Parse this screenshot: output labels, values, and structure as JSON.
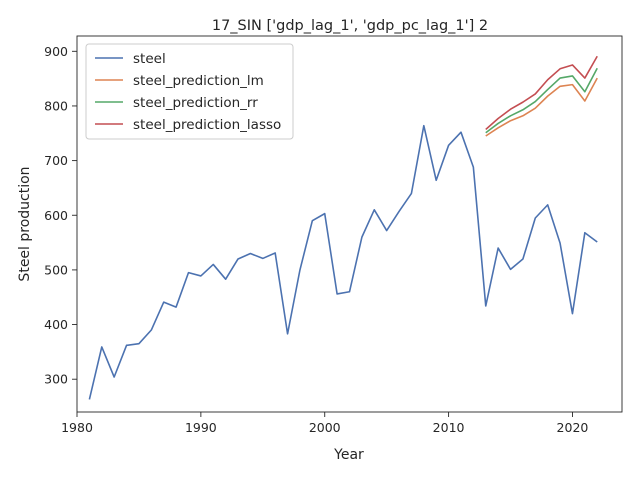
{
  "chart_data": {
    "type": "line",
    "title": "17_SIN ['gdp_lag_1', 'gdp_pc_lag_1'] 2",
    "xlabel": "Year",
    "ylabel": "Steel production",
    "xlim": [
      1980,
      2024
    ],
    "ylim": [
      240,
      928
    ],
    "xticks": [
      1980,
      1990,
      2000,
      2010,
      2020
    ],
    "yticks": [
      300,
      400,
      500,
      600,
      700,
      800,
      900
    ],
    "grid": false,
    "legend_position": "upper-left",
    "series": [
      {
        "name": "steel",
        "color": "#4c72b0",
        "x": [
          1981,
          1982,
          1983,
          1984,
          1985,
          1986,
          1987,
          1988,
          1989,
          1990,
          1991,
          1992,
          1993,
          1994,
          1995,
          1996,
          1997,
          1998,
          1999,
          2000,
          2001,
          2002,
          2003,
          2004,
          2005,
          2006,
          2007,
          2008,
          2009,
          2010,
          2011,
          2012,
          2013,
          2014,
          2015,
          2016,
          2017,
          2018,
          2019,
          2020,
          2021,
          2022
        ],
        "y": [
          263,
          359,
          304,
          362,
          365,
          390,
          441,
          432,
          495,
          489,
          510,
          483,
          520,
          530,
          521,
          531,
          383,
          500,
          590,
          603,
          456,
          460,
          560,
          610,
          572,
          607,
          640,
          764,
          664,
          728,
          752,
          688,
          434,
          540,
          501,
          520,
          595,
          619,
          549,
          420,
          568,
          551
        ]
      },
      {
        "name": "steel_prediction_lm",
        "color": "#dd8452",
        "x": [
          2013,
          2014,
          2015,
          2016,
          2017,
          2018,
          2019,
          2020,
          2021,
          2022
        ],
        "y": [
          745,
          760,
          773,
          782,
          796,
          818,
          836,
          839,
          809,
          851
        ]
      },
      {
        "name": "steel_prediction_rr",
        "color": "#55a868",
        "x": [
          2013,
          2014,
          2015,
          2016,
          2017,
          2018,
          2019,
          2020,
          2021,
          2022
        ],
        "y": [
          751,
          768,
          782,
          793,
          808,
          830,
          851,
          855,
          826,
          869
        ]
      },
      {
        "name": "steel_prediction_lasso",
        "color": "#c44e52",
        "x": [
          2013,
          2014,
          2015,
          2016,
          2017,
          2018,
          2019,
          2020,
          2021,
          2022
        ],
        "y": [
          757,
          777,
          794,
          807,
          822,
          848,
          868,
          875,
          851,
          891
        ]
      }
    ]
  }
}
